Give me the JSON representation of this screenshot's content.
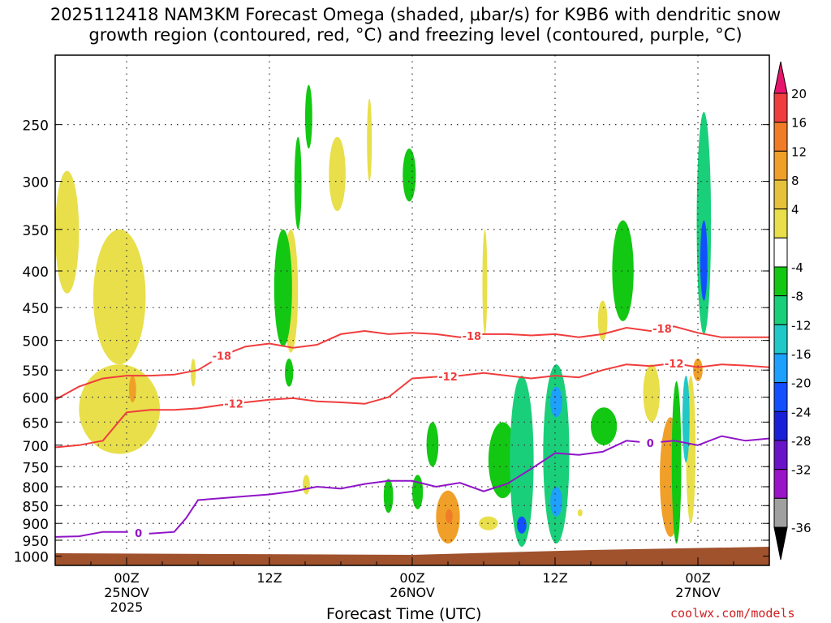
{
  "title_line1": "2025112418 NAM3KM Forecast Omega (shaded, μbar/s) for K9B6 with dendritic snow",
  "title_line2": "growth region (contoured, red, °C) and freezing level (contoured, purple, °C)",
  "credit": "coolwx.com/models",
  "chart_data": {
    "type": "heatmap",
    "title": "2025112418 NAM3KM Forecast Omega (shaded, μbar/s) for K9B6 with dendritic snow growth region (contoured, red, °C) and freezing level (contoured, purple, °C)",
    "xlabel": "Forecast Time (UTC)",
    "ylabel": "",
    "x_unit": "hours since 2025-11-24 18Z",
    "xlim": [
      0,
      60
    ],
    "ylim_hpa": [
      200,
      1030
    ],
    "y_ticks": [
      250,
      300,
      350,
      400,
      450,
      500,
      550,
      600,
      650,
      700,
      750,
      800,
      850,
      900,
      950,
      1000
    ],
    "x_ticks": [
      {
        "x": 6,
        "lines": [
          "00Z",
          "25NOV",
          "2025"
        ]
      },
      {
        "x": 18,
        "lines": [
          "12Z"
        ]
      },
      {
        "x": 30,
        "lines": [
          "00Z",
          "26NOV"
        ]
      },
      {
        "x": 42,
        "lines": [
          "12Z"
        ]
      },
      {
        "x": 54,
        "lines": [
          "00Z",
          "27NOV"
        ]
      }
    ],
    "grid": true,
    "colorbar": {
      "ticks": [
        "20",
        "16",
        "12",
        "8",
        "4",
        "-4",
        "-8",
        "-12",
        "-16",
        "-20",
        "-24",
        "-28",
        "-32",
        "-36"
      ],
      "colors": [
        "#e8156e",
        "#f03d3d",
        "#f07c28",
        "#f0a028",
        "#e6c23c",
        "#e8df4a",
        "#ffffff",
        "#12c812",
        "#1acf7a",
        "#20c8c8",
        "#1ea0ff",
        "#1250ff",
        "#1a20d8",
        "#6a14c8",
        "#9a14c8",
        "#a0a0a0",
        "#000000"
      ]
    },
    "omega_cells": [
      {
        "x0": 0,
        "x1": 2,
        "p0": 290,
        "p1": 430,
        "v": 5
      },
      {
        "x0": 3.2,
        "x1": 7.6,
        "p0": 350,
        "p1": 540,
        "v": 5
      },
      {
        "x0": 2,
        "x1": 8.8,
        "p0": 540,
        "p1": 720,
        "v": 5
      },
      {
        "x0": 6.2,
        "x1": 6.8,
        "p0": 560,
        "p1": 610,
        "v": 9
      },
      {
        "x0": 11.4,
        "x1": 11.8,
        "p0": 530,
        "p1": 580,
        "v": 5
      },
      {
        "x0": 19.2,
        "x1": 20.4,
        "p0": 350,
        "p1": 520,
        "v": 5,
        "sign": -1
      },
      {
        "x0": 20.1,
        "x1": 20.7,
        "p0": 260,
        "p1": 350,
        "v": -5
      },
      {
        "x0": 21,
        "x1": 21.6,
        "p0": 220,
        "p1": 270,
        "v": -5
      },
      {
        "x0": 18.4,
        "x1": 19.9,
        "p0": 350,
        "p1": 510,
        "v": -5
      },
      {
        "x0": 19.3,
        "x1": 20,
        "p0": 530,
        "p1": 580,
        "v": -5
      },
      {
        "x0": 23,
        "x1": 24.4,
        "p0": 260,
        "p1": 330,
        "v": 5
      },
      {
        "x0": 26.2,
        "x1": 26.6,
        "p0": 230,
        "p1": 300,
        "v": 5
      },
      {
        "x0": 29.2,
        "x1": 30.3,
        "p0": 270,
        "p1": 320,
        "v": -5
      },
      {
        "x0": 20.8,
        "x1": 21.4,
        "p0": 770,
        "p1": 820,
        "v": 5
      },
      {
        "x0": 27.6,
        "x1": 28.4,
        "p0": 780,
        "p1": 870,
        "v": -5
      },
      {
        "x0": 30,
        "x1": 30.9,
        "p0": 770,
        "p1": 860,
        "v": -5
      },
      {
        "x0": 31.2,
        "x1": 32.2,
        "p0": 650,
        "p1": 750,
        "v": -5
      },
      {
        "x0": 32,
        "x1": 34,
        "p0": 810,
        "p1": 960,
        "v": 9
      },
      {
        "x0": 32.8,
        "x1": 33.4,
        "p0": 860,
        "p1": 900,
        "v": 13
      },
      {
        "x0": 35.6,
        "x1": 37.2,
        "p0": 880,
        "p1": 920,
        "v": 5
      },
      {
        "x0": 36.4,
        "x1": 38.8,
        "p0": 650,
        "p1": 830,
        "v": -5
      },
      {
        "x0": 38.2,
        "x1": 40.2,
        "p0": 560,
        "p1": 970,
        "v": -9
      },
      {
        "x0": 38.8,
        "x1": 39.6,
        "p0": 880,
        "p1": 930,
        "v": -21
      },
      {
        "x0": 41,
        "x1": 43.2,
        "p0": 540,
        "p1": 960,
        "v": -9
      },
      {
        "x0": 41.6,
        "x1": 42.6,
        "p0": 580,
        "p1": 640,
        "v": -17
      },
      {
        "x0": 41.6,
        "x1": 42.6,
        "p0": 800,
        "p1": 880,
        "v": -17
      },
      {
        "x0": 35.9,
        "x1": 36.3,
        "p0": 350,
        "p1": 490,
        "v": 5
      },
      {
        "x0": 45.6,
        "x1": 46.4,
        "p0": 440,
        "p1": 500,
        "v": 5
      },
      {
        "x0": 46.8,
        "x1": 48.6,
        "p0": 340,
        "p1": 470,
        "v": -5
      },
      {
        "x0": 45,
        "x1": 47.2,
        "p0": 620,
        "p1": 700,
        "v": -5
      },
      {
        "x0": 49.4,
        "x1": 50.8,
        "p0": 540,
        "p1": 650,
        "v": 5
      },
      {
        "x0": 50.8,
        "x1": 52.6,
        "p0": 640,
        "p1": 940,
        "v": 9
      },
      {
        "x0": 51.8,
        "x1": 52.6,
        "p0": 570,
        "p1": 960,
        "v": -7
      },
      {
        "x0": 53,
        "x1": 53.8,
        "p0": 560,
        "p1": 900,
        "v": 5
      },
      {
        "x0": 53.6,
        "x1": 54.4,
        "p0": 530,
        "p1": 570,
        "v": 9
      },
      {
        "x0": 52.7,
        "x1": 53.3,
        "p0": 560,
        "p1": 740,
        "v": -13
      },
      {
        "x0": 53.9,
        "x1": 55.1,
        "p0": 240,
        "p1": 490,
        "v": -9
      },
      {
        "x0": 54.2,
        "x1": 54.8,
        "p0": 340,
        "p1": 440,
        "v": -21
      },
      {
        "x0": 44,
        "x1": 44.2,
        "p0": 860,
        "p1": 880,
        "v": 5
      }
    ],
    "series": [
      {
        "name": "-18",
        "color": "#f03d3d",
        "label_at": [
          [
            14,
            "-18"
          ],
          [
            35,
            "-18"
          ],
          [
            51,
            "-18"
          ]
        ],
        "x": [
          0,
          2,
          4,
          6,
          8,
          10,
          12,
          14,
          16,
          18,
          20,
          22,
          24,
          26,
          28,
          30,
          32,
          34,
          36,
          38,
          40,
          42,
          44,
          46,
          48,
          50,
          52,
          54,
          56,
          58,
          60
        ],
        "p": [
          605,
          580,
          565,
          560,
          560,
          558,
          550,
          525,
          510,
          505,
          512,
          507,
          490,
          485,
          490,
          488,
          490,
          495,
          490,
          490,
          492,
          490,
          495,
          490,
          480,
          485,
          478,
          488,
          495,
          495,
          495
        ]
      },
      {
        "name": "-12",
        "color": "#f03d3d",
        "label_at": [
          [
            15,
            "-12"
          ],
          [
            33,
            "-12"
          ],
          [
            52,
            "-12"
          ]
        ],
        "x": [
          0,
          2,
          4,
          6,
          8,
          10,
          12,
          14,
          16,
          18,
          20,
          22,
          24,
          26,
          28,
          30,
          32,
          34,
          36,
          38,
          40,
          42,
          44,
          46,
          48,
          50,
          52,
          54,
          56,
          58,
          60
        ],
        "p": [
          705,
          700,
          690,
          630,
          625,
          625,
          622,
          615,
          610,
          605,
          602,
          608,
          610,
          613,
          600,
          565,
          562,
          560,
          555,
          560,
          565,
          560,
          563,
          550,
          540,
          543,
          538,
          545,
          540,
          542,
          545
        ]
      },
      {
        "name": "0",
        "color": "#9014c8",
        "label_at": [
          [
            7,
            "0"
          ],
          [
            50,
            "0"
          ]
        ],
        "x": [
          0,
          2,
          4,
          6,
          8,
          10,
          11,
          12,
          14,
          16,
          18,
          20,
          22,
          24,
          26,
          28,
          30,
          32,
          34,
          36,
          38,
          40,
          42,
          44,
          46,
          48,
          50,
          52,
          54,
          56,
          58,
          60
        ],
        "p": [
          940,
          938,
          925,
          925,
          930,
          925,
          885,
          835,
          830,
          825,
          820,
          812,
          800,
          805,
          793,
          785,
          785,
          800,
          790,
          812,
          792,
          755,
          718,
          722,
          715,
          690,
          695,
          690,
          700,
          680,
          690,
          685
        ]
      }
    ]
  }
}
